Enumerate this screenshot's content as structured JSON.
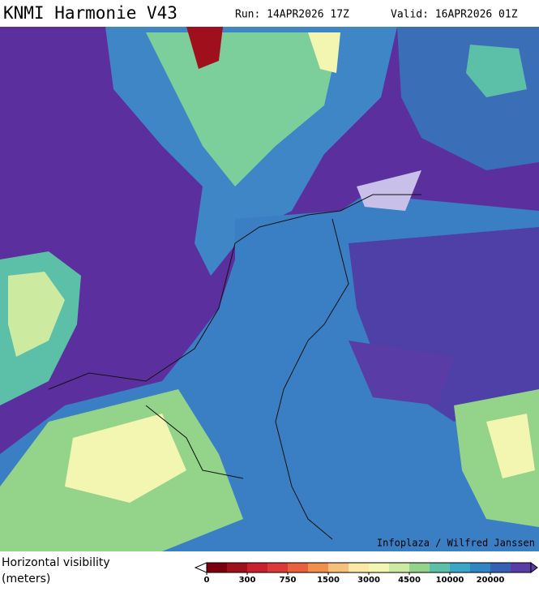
{
  "header": {
    "title": "KNMI Harmonie V43",
    "run": "Run: 14APR2026 17Z",
    "valid": "Valid: 16APR2026 01Z"
  },
  "credit": "Infoplaza / Wilfred Janssen",
  "legend": {
    "label_lines": [
      "Horizontal visibility",
      "(meters)"
    ],
    "ticks": [
      0,
      300,
      750,
      1500,
      3000,
      4500,
      10000,
      20000
    ],
    "colors": [
      "#7a0010",
      "#a0101c",
      "#c8202c",
      "#dc3a3a",
      "#e8603c",
      "#f0904a",
      "#f7c07a",
      "#fbe7a6",
      "#f3f6b0",
      "#cdeba0",
      "#94d38a",
      "#5cbfa8",
      "#3aa6c8",
      "#2f86c4",
      "#3560b4",
      "#5a3ca6"
    ]
  }
}
